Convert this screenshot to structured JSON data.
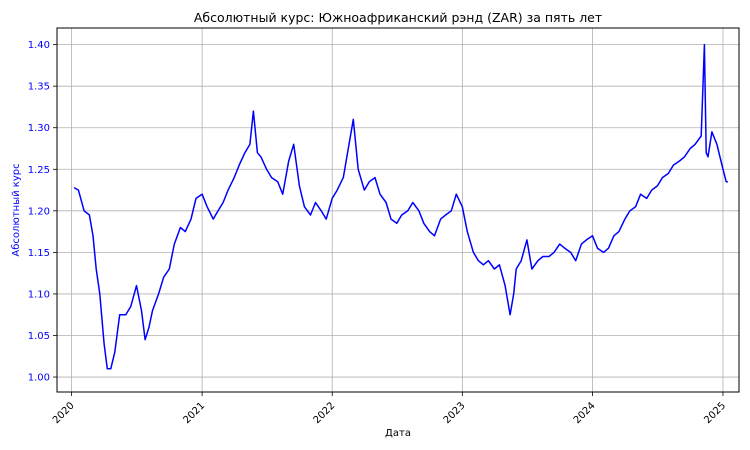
{
  "chart_data": {
    "type": "line",
    "title": "Абсолютный курс: Южноафриканский рэнд (ZAR) за пять лет",
    "xlabel": "Дата",
    "ylabel": "Абсолютный курс",
    "x_ticks": [
      "2020",
      "2021",
      "2022",
      "2023",
      "2024",
      "2025"
    ],
    "y_ticks": [
      "1.00",
      "1.05",
      "1.10",
      "1.15",
      "1.20",
      "1.25",
      "1.30",
      "1.35",
      "1.40"
    ],
    "xlim": [
      "2019-11-21",
      "2025-02-15"
    ],
    "ylim": [
      0.982,
      1.42
    ],
    "grid": true,
    "line_color": "#0000ff",
    "ylabel_color": "#0000ff",
    "series": [
      {
        "x": [
          "2020-01-08",
          "2020-01-20",
          "2020-02-05",
          "2020-02-20",
          "2020-03-01",
          "2020-03-10",
          "2020-03-20",
          "2020-04-01",
          "2020-04-10",
          "2020-04-20",
          "2020-05-01",
          "2020-05-15",
          "2020-06-01",
          "2020-06-15",
          "2020-07-01",
          "2020-07-15",
          "2020-07-25",
          "2020-08-05",
          "2020-08-15",
          "2020-09-01",
          "2020-09-15",
          "2020-10-01",
          "2020-10-15",
          "2020-11-01",
          "2020-11-15",
          "2020-12-01",
          "2020-12-15",
          "2021-01-01",
          "2021-01-15",
          "2021-02-01",
          "2021-02-15",
          "2021-03-01",
          "2021-03-15",
          "2021-04-01",
          "2021-04-15",
          "2021-05-01",
          "2021-05-15",
          "2021-05-25",
          "2021-06-05",
          "2021-06-15",
          "2021-07-01",
          "2021-07-15",
          "2021-08-01",
          "2021-08-15",
          "2021-09-01",
          "2021-09-15",
          "2021-10-01",
          "2021-10-15",
          "2021-11-01",
          "2021-11-15",
          "2021-12-01",
          "2021-12-15",
          "2022-01-01",
          "2022-01-15",
          "2022-02-01",
          "2022-02-15",
          "2022-03-01",
          "2022-03-15",
          "2022-04-01",
          "2022-04-15",
          "2022-05-01",
          "2022-05-15",
          "2022-06-01",
          "2022-06-15",
          "2022-07-01",
          "2022-07-15",
          "2022-08-01",
          "2022-08-15",
          "2022-09-01",
          "2022-09-15",
          "2022-10-01",
          "2022-10-15",
          "2022-11-01",
          "2022-11-15",
          "2022-12-01",
          "2022-12-15",
          "2023-01-01",
          "2023-01-15",
          "2023-02-01",
          "2023-02-15",
          "2023-03-01",
          "2023-03-15",
          "2023-04-01",
          "2023-04-15",
          "2023-05-01",
          "2023-05-15",
          "2023-05-25",
          "2023-06-01",
          "2023-06-15",
          "2023-07-01",
          "2023-07-15",
          "2023-08-01",
          "2023-08-15",
          "2023-09-01",
          "2023-09-15",
          "2023-10-01",
          "2023-10-15",
          "2023-11-01",
          "2023-11-15",
          "2023-12-01",
          "2023-12-15",
          "2024-01-01",
          "2024-01-15",
          "2024-02-01",
          "2024-02-15",
          "2024-03-01",
          "2024-03-15",
          "2024-04-01",
          "2024-04-15",
          "2024-05-01",
          "2024-05-15",
          "2024-06-01",
          "2024-06-15",
          "2024-07-01",
          "2024-07-15",
          "2024-08-01",
          "2024-08-15",
          "2024-09-01",
          "2024-09-15",
          "2024-10-01",
          "2024-10-15",
          "2024-11-01",
          "2024-11-10",
          "2024-11-15",
          "2024-11-20",
          "2024-12-01",
          "2024-12-15",
          "2025-01-01",
          "2025-01-10",
          "2025-01-15"
        ],
        "y": [
          1.228,
          1.225,
          1.2,
          1.195,
          1.17,
          1.13,
          1.1,
          1.04,
          1.01,
          1.01,
          1.03,
          1.075,
          1.075,
          1.085,
          1.11,
          1.08,
          1.045,
          1.06,
          1.08,
          1.1,
          1.12,
          1.13,
          1.16,
          1.18,
          1.175,
          1.19,
          1.215,
          1.22,
          1.205,
          1.19,
          1.2,
          1.21,
          1.225,
          1.24,
          1.255,
          1.27,
          1.28,
          1.32,
          1.27,
          1.265,
          1.25,
          1.24,
          1.235,
          1.22,
          1.26,
          1.28,
          1.23,
          1.205,
          1.195,
          1.21,
          1.2,
          1.19,
          1.215,
          1.225,
          1.24,
          1.275,
          1.31,
          1.25,
          1.225,
          1.235,
          1.24,
          1.22,
          1.21,
          1.19,
          1.185,
          1.195,
          1.2,
          1.21,
          1.2,
          1.185,
          1.175,
          1.17,
          1.19,
          1.195,
          1.2,
          1.22,
          1.205,
          1.175,
          1.15,
          1.14,
          1.135,
          1.14,
          1.13,
          1.135,
          1.11,
          1.075,
          1.1,
          1.13,
          1.14,
          1.165,
          1.13,
          1.14,
          1.145,
          1.145,
          1.15,
          1.16,
          1.155,
          1.15,
          1.14,
          1.16,
          1.165,
          1.17,
          1.155,
          1.15,
          1.155,
          1.17,
          1.175,
          1.19,
          1.2,
          1.205,
          1.22,
          1.215,
          1.225,
          1.23,
          1.24,
          1.245,
          1.255,
          1.26,
          1.265,
          1.275,
          1.28,
          1.29,
          1.4,
          1.27,
          1.265,
          1.295,
          1.28,
          1.25,
          1.235,
          1.235
        ]
      }
    ]
  }
}
